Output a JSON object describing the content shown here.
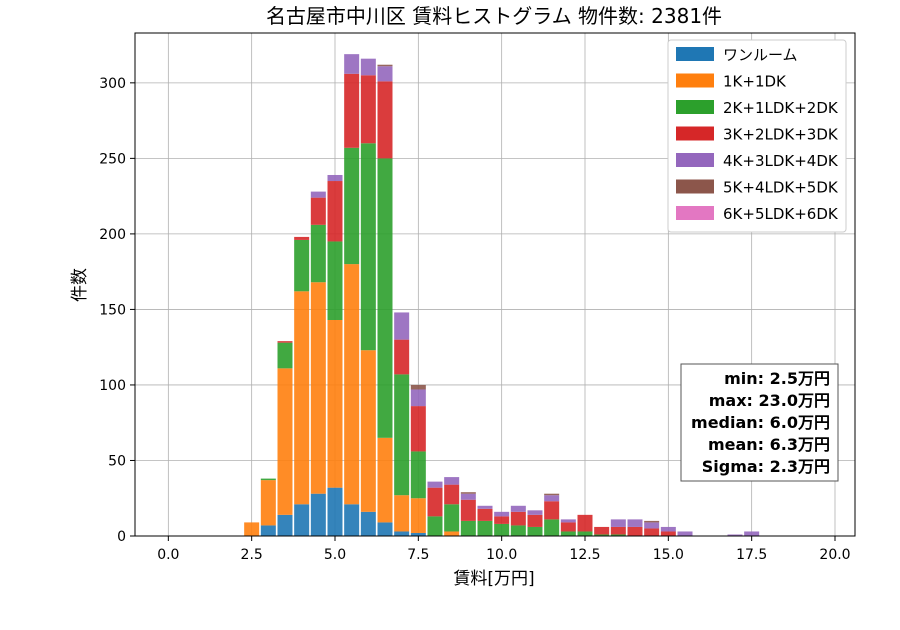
{
  "chart_data": {
    "type": "bar",
    "stacked": true,
    "title": "名古屋市中川区 賃料ヒストグラム 物件数: 2381件",
    "xlabel": "賃料[万円]",
    "ylabel": "件数",
    "xlim": [
      -1.0,
      20.6
    ],
    "ylim": [
      0,
      333
    ],
    "xticks": [
      0.0,
      2.5,
      5.0,
      7.5,
      10.0,
      12.5,
      15.0,
      17.5,
      20.0
    ],
    "xtick_labels": [
      "0.0",
      "2.5",
      "5.0",
      "7.5",
      "10.0",
      "12.5",
      "15.0",
      "17.5",
      "20.0"
    ],
    "yticks": [
      0,
      50,
      100,
      150,
      200,
      250,
      300
    ],
    "ytick_labels": [
      "0",
      "50",
      "100",
      "150",
      "200",
      "250",
      "300"
    ],
    "grid": true,
    "legend_position": "top-right",
    "bin_width": 0.5,
    "bin_starts": [
      2.25,
      2.75,
      3.25,
      3.75,
      4.25,
      4.75,
      5.25,
      5.75,
      6.25,
      6.75,
      7.25,
      7.75,
      8.25,
      8.75,
      9.25,
      9.75,
      10.25,
      10.75,
      11.25,
      11.75,
      12.25,
      12.75,
      13.25,
      13.75,
      14.25,
      14.75,
      15.25,
      15.75,
      16.25,
      16.75,
      17.25,
      17.75
    ],
    "series": [
      {
        "name": "ワンルーム",
        "color": "#1f77b4",
        "values": [
          0,
          7,
          14,
          21,
          28,
          32,
          21,
          16,
          9,
          3,
          2,
          0,
          0,
          0,
          0,
          0,
          0,
          0,
          0,
          0,
          0,
          0,
          0,
          0,
          0,
          0,
          0,
          0,
          0,
          0,
          0,
          0
        ]
      },
      {
        "name": "1K+1DK",
        "color": "#ff7f0e",
        "values": [
          9,
          30,
          97,
          141,
          140,
          111,
          159,
          107,
          56,
          24,
          23,
          0,
          3,
          0,
          0,
          0,
          0,
          0,
          0,
          0,
          0,
          0,
          0,
          0,
          0,
          0,
          0,
          0,
          0,
          0,
          0,
          0
        ]
      },
      {
        "name": "2K+1LDK+2DK",
        "color": "#2ca02c",
        "values": [
          0,
          1,
          17,
          34,
          38,
          52,
          77,
          137,
          185,
          80,
          31,
          13,
          18,
          10,
          10,
          8,
          7,
          6,
          11,
          3,
          3,
          1,
          1,
          0,
          0,
          0,
          0,
          0,
          0,
          0,
          0,
          0
        ]
      },
      {
        "name": "3K+2LDK+3DK",
        "color": "#d62728",
        "values": [
          0,
          0,
          1,
          2,
          18,
          40,
          49,
          45,
          51,
          23,
          30,
          19,
          13,
          14,
          8,
          5,
          9,
          8,
          12,
          6,
          11,
          5,
          5,
          6,
          5,
          3,
          0,
          0,
          0,
          0,
          0,
          0
        ]
      },
      {
        "name": "4K+3LDK+4DK",
        "color": "#9467bd",
        "values": [
          0,
          0,
          0,
          0,
          4,
          4,
          13,
          11,
          10,
          18,
          11,
          4,
          5,
          4,
          2,
          3,
          4,
          3,
          4,
          2,
          0,
          0,
          5,
          5,
          4,
          3,
          3,
          0,
          0,
          1,
          3,
          0
        ]
      },
      {
        "name": "5K+4LDK+5DK",
        "color": "#8c564b",
        "values": [
          0,
          0,
          0,
          0,
          0,
          0,
          0,
          0,
          1,
          0,
          3,
          0,
          0,
          1,
          0,
          0,
          0,
          0,
          1,
          0,
          0,
          0,
          0,
          0,
          1,
          0,
          0,
          0,
          0,
          0,
          0,
          0
        ]
      },
      {
        "name": "6K+5LDK+6DK",
        "color": "#e377c2",
        "values": [
          0,
          0,
          0,
          0,
          0,
          0,
          0,
          0,
          0,
          0,
          0,
          0,
          0,
          0,
          0,
          0,
          0,
          0,
          0,
          0,
          0,
          0,
          0,
          0,
          0,
          0,
          0,
          0,
          0,
          0,
          0,
          0
        ]
      }
    ],
    "stats": [
      "min: 2.5万円",
      "max: 23.0万円",
      "median: 6.0万円",
      "mean: 6.3万円",
      "Sigma: 2.3万円"
    ]
  }
}
